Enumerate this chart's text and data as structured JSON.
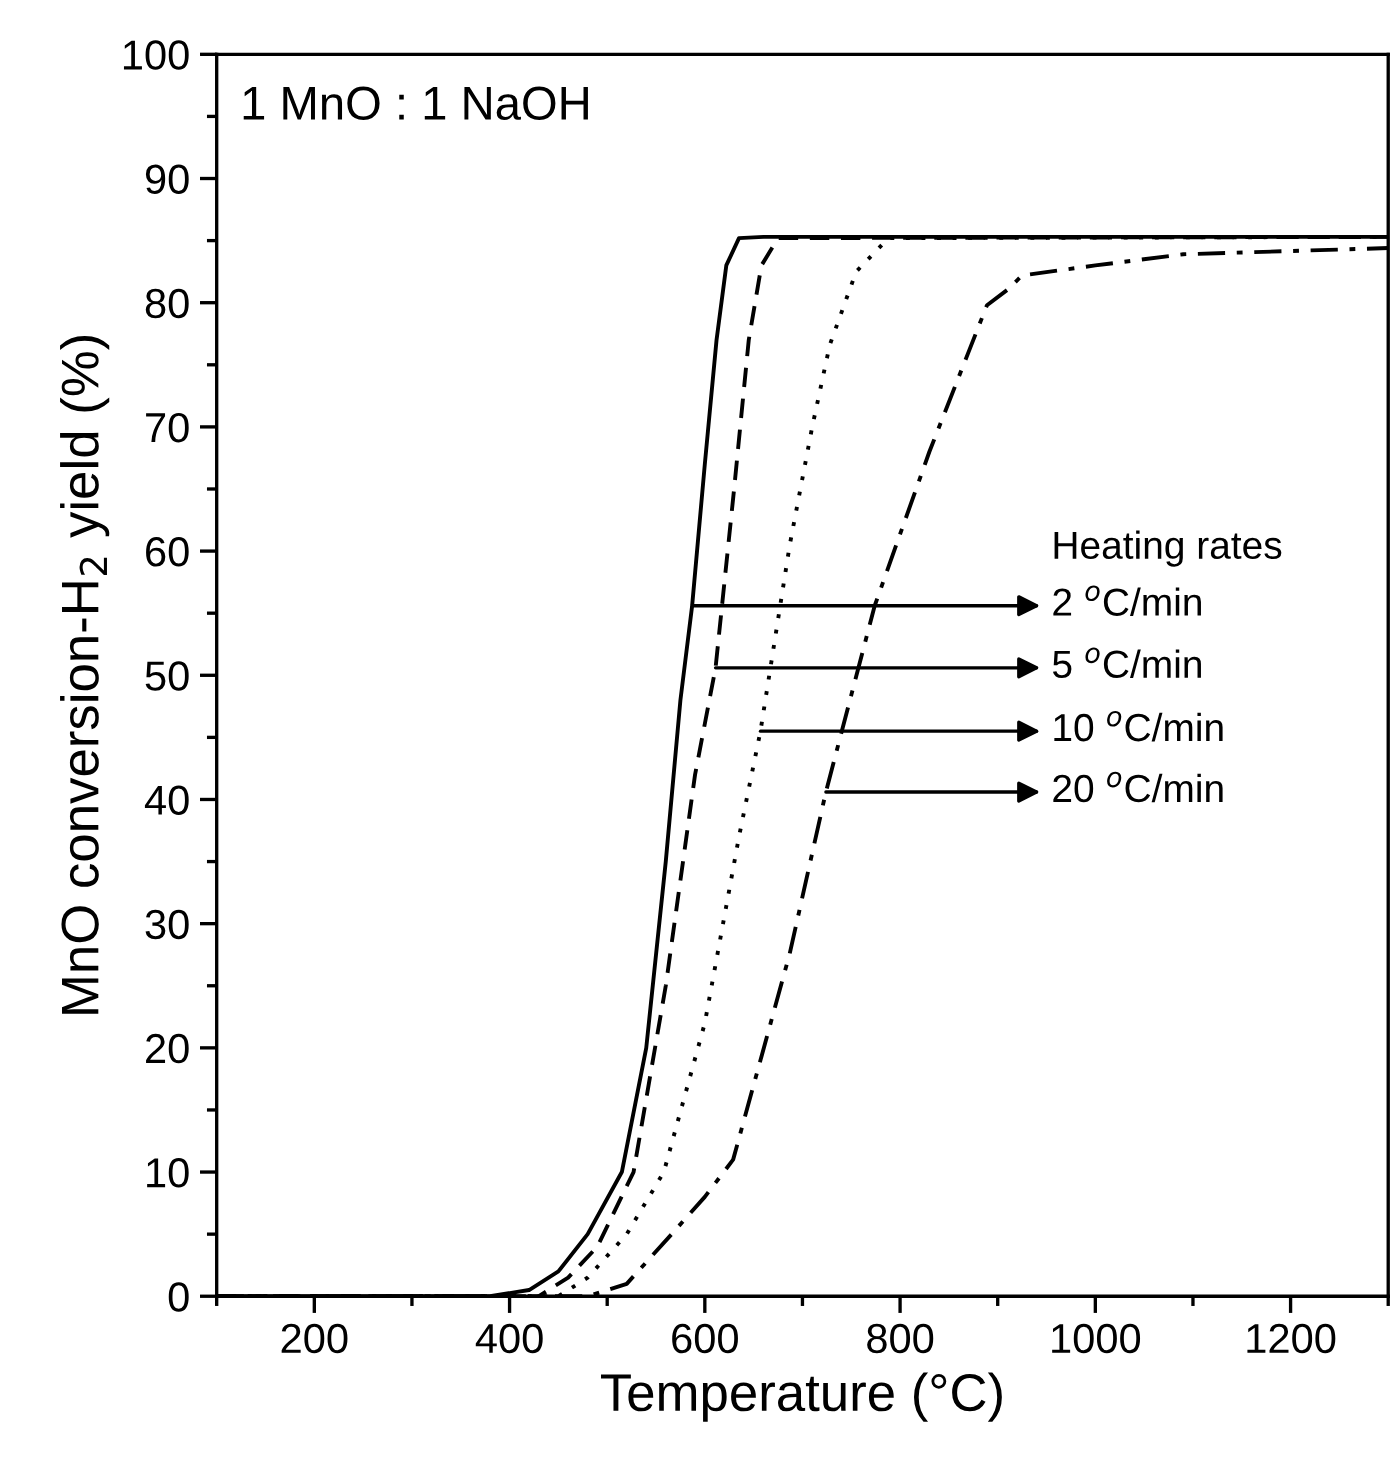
{
  "chart_data": {
    "type": "line",
    "xlabel": "Temperature (°C)",
    "ylabel": "MnO conversion-H$_{2}$ yield (%)",
    "xlim": [
      100,
      1300
    ],
    "xticks": [
      200,
      400,
      600,
      800,
      1000,
      1200
    ],
    "ylim": [
      0,
      100
    ],
    "yticks": [
      0,
      10,
      20,
      30,
      40,
      50,
      60,
      70,
      80,
      90,
      100
    ],
    "grid": false,
    "legend": false,
    "annotations": [
      "1 MnO : 1 NaOH",
      "Heating rates",
      {
        "text": "2 $^{o}$C/min",
        "x": 587,
        "y": 55.6
      },
      {
        "text": "5 $^{o}$C/min",
        "x": 611,
        "y": 50.6
      },
      {
        "text": "10 $^{o}$C/min",
        "x": 657,
        "y": 45.5
      },
      {
        "text": "20 $^{o}$C/min",
        "x": 724,
        "y": 40.6
      }
    ],
    "series": [
      {
        "color": "#000000",
        "line_style": "solid",
        "x": [
          100,
          380,
          420,
          450,
          480,
          515,
          540,
          560,
          575,
          587,
          600,
          612,
          622,
          635,
          660,
          1300
        ],
        "values": [
          0,
          0,
          0.5,
          2,
          5,
          10,
          20,
          35,
          48,
          55.6,
          67,
          77,
          83,
          85.2,
          85.3,
          85.3
        ]
      },
      {
        "color": "#000000",
        "line_style": "dashed",
        "x": [
          100,
          430,
          460,
          490,
          527,
          560,
          590,
          611,
          630,
          645,
          658,
          675,
          1300
        ],
        "values": [
          0,
          0,
          1.5,
          4,
          10,
          25,
          42,
          50.6,
          65,
          77,
          83,
          85.2,
          85.3
        ]
      },
      {
        "color": "#000000",
        "line_style": "dotted",
        "x": [
          100,
          450,
          480,
          520,
          558,
          600,
          635,
          657,
          687,
          710,
          728,
          755,
          788,
          1300
        ],
        "values": [
          0,
          0,
          1.5,
          5,
          10,
          22,
          37,
          45.5,
          60.5,
          70,
          76.6,
          82.5,
          85.2,
          85.3
        ]
      },
      {
        "color": "#000000",
        "line_style": "dashdot",
        "x": [
          100,
          480,
          520,
          566,
          600,
          629,
          687,
          724,
          774,
          830,
          870,
          889,
          911,
          925,
          1000,
          1090,
          1300
        ],
        "values": [
          0,
          0,
          1,
          5,
          8,
          11,
          27.6,
          40.6,
          55.6,
          68,
          76,
          79.8,
          81.1,
          82.2,
          83,
          83.9,
          84.4
        ]
      }
    ]
  }
}
